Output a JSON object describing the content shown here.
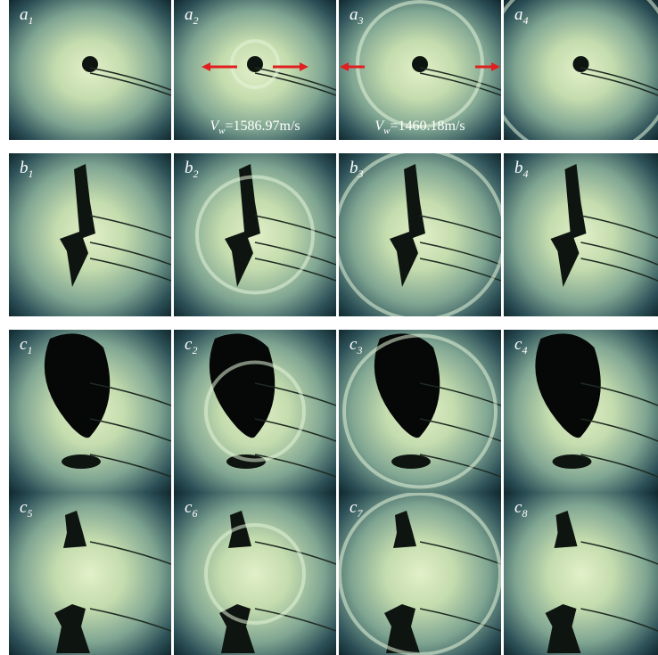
{
  "panels": [
    {
      "letter": "a",
      "sub": "1"
    },
    {
      "letter": "a",
      "sub": "2"
    },
    {
      "letter": "a",
      "sub": "3"
    },
    {
      "letter": "a",
      "sub": "4"
    },
    {
      "letter": "b",
      "sub": "1"
    },
    {
      "letter": "b",
      "sub": "2"
    },
    {
      "letter": "b",
      "sub": "3"
    },
    {
      "letter": "b",
      "sub": "4"
    },
    {
      "letter": "c",
      "sub": "1"
    },
    {
      "letter": "c",
      "sub": "2"
    },
    {
      "letter": "c",
      "sub": "3"
    },
    {
      "letter": "c",
      "sub": "4"
    },
    {
      "letter": "c",
      "sub": "5"
    },
    {
      "letter": "c",
      "sub": "6"
    },
    {
      "letter": "c",
      "sub": "7"
    },
    {
      "letter": "c",
      "sub": "8"
    }
  ],
  "annotations": [
    {
      "symbol": "V",
      "sub": "w",
      "text": "=1586.97m/s"
    },
    {
      "symbol": "V",
      "sub": "w",
      "text": "=1460.18m/s"
    }
  ]
}
